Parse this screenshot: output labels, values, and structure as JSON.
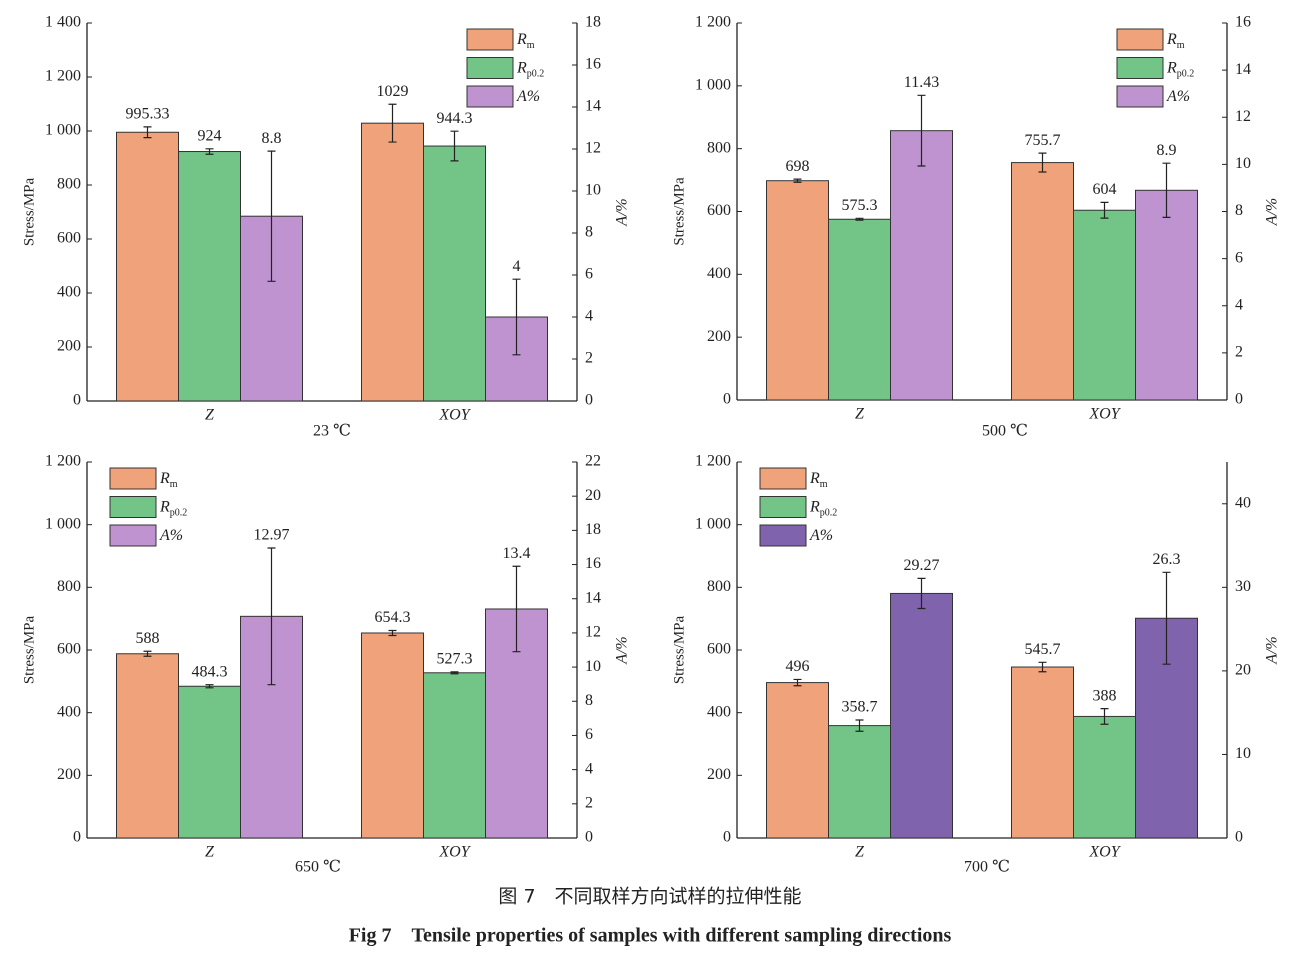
{
  "chart_data": [
    {
      "type": "bar",
      "xlabel": "23 ℃",
      "ylabel": "Stress/MPa",
      "y2label": "A/%",
      "categories": [
        "Z",
        "XOY"
      ],
      "series": [
        {
          "name": "Rm",
          "color": "#f0a27a",
          "values": [
            995.33,
            1029
          ],
          "errors": [
            20,
            70
          ]
        },
        {
          "name": "Rp0.2",
          "color": "#72c487",
          "values": [
            924,
            944.3
          ],
          "errors": [
            10,
            55
          ]
        },
        {
          "name": "A%",
          "color": "#bf93cf",
          "axis": "y2",
          "values": [
            8.8,
            4
          ],
          "errors": [
            3.1,
            1.8
          ]
        }
      ],
      "ylim": [
        0,
        1400
      ],
      "yticks": [
        0,
        200,
        400,
        600,
        800,
        {
          "value": 1000,
          "label": "1 000"
        },
        {
          "value": 1200,
          "label": "1 200"
        },
        {
          "value": 1400,
          "label": "1 400"
        }
      ],
      "y2lim": [
        0,
        18
      ],
      "y2ticks": [
        0,
        2,
        4,
        6,
        8,
        10,
        12,
        14,
        16,
        18
      ],
      "legend": "upper right"
    },
    {
      "type": "bar",
      "xlabel": "500 ℃",
      "ylabel": "Stress/MPa",
      "y2label": "A/%",
      "categories": [
        "Z",
        "XOY"
      ],
      "series": [
        {
          "name": "Rm",
          "color": "#f0a27a",
          "values": [
            698,
            755.7
          ],
          "errors": [
            5,
            30
          ]
        },
        {
          "name": "Rp0.2",
          "color": "#72c487",
          "values": [
            575.3,
            604
          ],
          "errors": [
            3,
            25
          ]
        },
        {
          "name": "A%",
          "color": "#bf93cf",
          "axis": "y2",
          "values": [
            11.43,
            8.9
          ],
          "errors": [
            1.5,
            1.15
          ]
        }
      ],
      "ylim": [
        0,
        1200
      ],
      "yticks": [
        0,
        200,
        400,
        600,
        800,
        {
          "value": 1000,
          "label": "1 000"
        },
        {
          "value": 1200,
          "label": "1 200"
        }
      ],
      "y2lim": [
        0,
        16
      ],
      "y2ticks": [
        0,
        2,
        4,
        6,
        8,
        10,
        12,
        14,
        16
      ],
      "legend": "upper right"
    },
    {
      "type": "bar",
      "xlabel": "650 ℃",
      "ylabel": "Stress/MPa",
      "y2label": "A/%",
      "categories": [
        "Z",
        "XOY"
      ],
      "series": [
        {
          "name": "Rm",
          "color": "#f0a27a",
          "values": [
            588,
            654.3
          ],
          "errors": [
            8,
            8
          ]
        },
        {
          "name": "Rp0.2",
          "color": "#72c487",
          "values": [
            484.3,
            527.3
          ],
          "errors": [
            5,
            3
          ]
        },
        {
          "name": "A%",
          "color": "#bf93cf",
          "axis": "y2",
          "values": [
            12.97,
            13.4
          ],
          "errors": [
            4.0,
            2.5
          ]
        }
      ],
      "ylim": [
        0,
        1200
      ],
      "yticks": [
        0,
        200,
        400,
        600,
        800,
        {
          "value": 1000,
          "label": "1 000"
        },
        {
          "value": 1200,
          "label": "1 200"
        }
      ],
      "y2lim": [
        0,
        22
      ],
      "y2ticks": [
        0,
        2,
        4,
        6,
        8,
        10,
        12,
        14,
        16,
        18,
        20,
        22
      ],
      "legend": "upper left"
    },
    {
      "type": "bar",
      "xlabel": "700 ℃",
      "ylabel": "Stress/MPa",
      "y2label": "A/%",
      "categories": [
        "Z",
        "XOY"
      ],
      "series": [
        {
          "name": "Rm",
          "color": "#f0a27a",
          "values": [
            496,
            545.7
          ],
          "errors": [
            10,
            15
          ]
        },
        {
          "name": "Rp0.2",
          "color": "#72c487",
          "values": [
            358.7,
            388
          ],
          "errors": [
            18,
            25
          ]
        },
        {
          "name": "A%",
          "color": "#8063ad",
          "axis": "y2",
          "values": [
            29.27,
            26.3
          ],
          "errors": [
            1.8,
            5.5
          ]
        }
      ],
      "ylim": [
        0,
        1200
      ],
      "yticks": [
        0,
        200,
        400,
        600,
        800,
        {
          "value": 1000,
          "label": "1 000"
        },
        {
          "value": 1200,
          "label": "1 200"
        }
      ],
      "y2lim": [
        0,
        45
      ],
      "y2ticks": [
        0,
        10,
        20,
        30,
        40
      ],
      "legend": "upper left"
    }
  ],
  "caption_cn": "图 7　不同取样方向试样的拉伸性能",
  "caption_en": "Fig 7　Tensile properties of samples with different sampling directions"
}
